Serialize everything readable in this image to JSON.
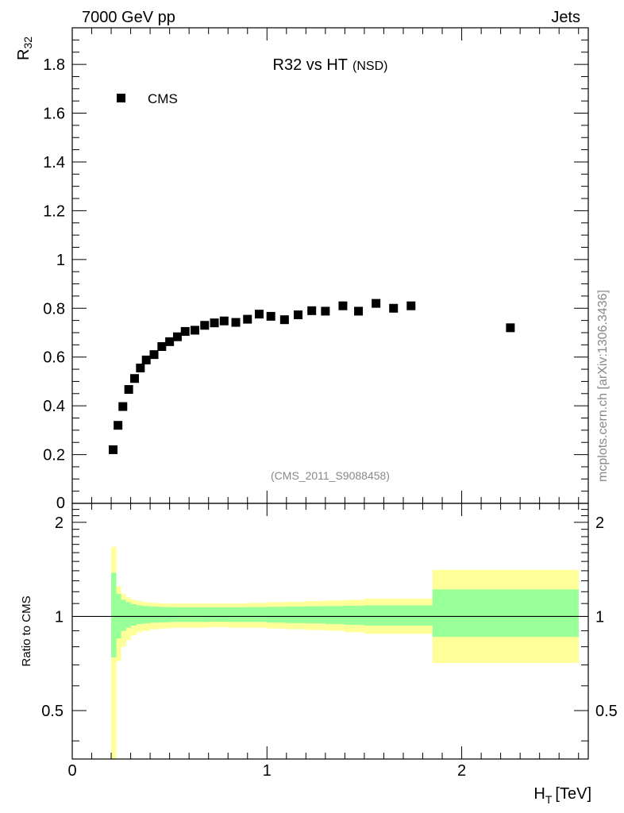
{
  "header": {
    "left": "7000 GeV pp",
    "right": "Jets"
  },
  "side_label": "mcplots.cern.ch [arXiv:1306.3436]",
  "watermark": "(CMS_2011_S9088458)",
  "colors": {
    "data": "#000000",
    "band_inner": "#99ff99",
    "band_outer": "#ffff99",
    "axis": "#000000"
  },
  "chart_data": [
    {
      "type": "scatter",
      "title": "R32 vs HT",
      "title_suffix": "(NSD)",
      "ylabel_main": "R",
      "ylabel_sub": "32",
      "xlim": [
        0,
        2.65
      ],
      "ylim": [
        0,
        1.95
      ],
      "yticks": [
        0,
        0.2,
        0.4,
        0.6,
        0.8,
        1,
        1.2,
        1.4,
        1.6,
        1.8
      ],
      "ytick_labels": [
        "0",
        "0.2",
        "0.4",
        "0.6",
        "0.8",
        "1",
        "1.2",
        "1.4",
        "1.6",
        "1.8"
      ],
      "legend": [
        {
          "name": "CMS",
          "marker": "square"
        }
      ],
      "series": [
        {
          "name": "CMS",
          "x": [
            0.21,
            0.235,
            0.26,
            0.29,
            0.32,
            0.35,
            0.38,
            0.42,
            0.46,
            0.5,
            0.54,
            0.58,
            0.63,
            0.68,
            0.73,
            0.78,
            0.84,
            0.9,
            0.96,
            1.02,
            1.09,
            1.16,
            1.23,
            1.3,
            1.39,
            1.47,
            1.56,
            1.65,
            1.74,
            2.25
          ],
          "y": [
            0.22,
            0.32,
            0.397,
            0.467,
            0.512,
            0.555,
            0.588,
            0.61,
            0.643,
            0.663,
            0.683,
            0.705,
            0.71,
            0.73,
            0.74,
            0.748,
            0.742,
            0.755,
            0.776,
            0.767,
            0.753,
            0.773,
            0.79,
            0.788,
            0.81,
            0.788,
            0.82,
            0.8,
            0.81,
            0.72
          ]
        }
      ]
    },
    {
      "type": "area",
      "ylabel": "Ratio to CMS",
      "xlabel_main": "H",
      "xlabel_sub": "T",
      "xlabel_unit": "[TeV]",
      "xlim": [
        0,
        2.65
      ],
      "ylim": [
        0.35,
        2.3
      ],
      "xticks": [
        0,
        1,
        2
      ],
      "xtick_labels": [
        "0",
        "1",
        "2"
      ],
      "yticks": [
        0.5,
        1,
        2
      ],
      "ytick_labels": [
        "0.5",
        "1",
        "2"
      ],
      "reference_line": 1,
      "series": [
        {
          "name": "outer uncertainty band",
          "edges": [
            0.2,
            0.225,
            0.25,
            0.275,
            0.3,
            0.33,
            0.36,
            0.4,
            0.45,
            0.5,
            0.55,
            0.6,
            0.7,
            0.8,
            0.9,
            1.0,
            1.1,
            1.2,
            1.3,
            1.4,
            1.5,
            1.6,
            1.7,
            1.85,
            2.6
          ],
          "low": [
            0.3,
            0.72,
            0.8,
            0.84,
            0.87,
            0.89,
            0.9,
            0.91,
            0.915,
            0.92,
            0.92,
            0.92,
            0.925,
            0.92,
            0.92,
            0.915,
            0.91,
            0.905,
            0.9,
            0.89,
            0.88,
            0.88,
            0.88,
            0.71
          ],
          "high": [
            1.67,
            1.25,
            1.18,
            1.15,
            1.13,
            1.12,
            1.11,
            1.105,
            1.1,
            1.1,
            1.1,
            1.1,
            1.1,
            1.1,
            1.105,
            1.11,
            1.115,
            1.12,
            1.125,
            1.13,
            1.14,
            1.14,
            1.14,
            1.41
          ]
        },
        {
          "name": "inner uncertainty band",
          "edges": [
            0.2,
            0.225,
            0.25,
            0.275,
            0.3,
            0.33,
            0.36,
            0.4,
            0.45,
            0.5,
            0.55,
            0.6,
            0.7,
            0.8,
            0.9,
            1.0,
            1.1,
            1.2,
            1.3,
            1.4,
            1.5,
            1.6,
            1.7,
            1.85,
            2.6
          ],
          "low": [
            0.74,
            0.85,
            0.9,
            0.92,
            0.935,
            0.945,
            0.95,
            0.955,
            0.958,
            0.96,
            0.96,
            0.96,
            0.962,
            0.96,
            0.96,
            0.955,
            0.952,
            0.95,
            0.945,
            0.94,
            0.935,
            0.935,
            0.935,
            0.86
          ],
          "high": [
            1.38,
            1.18,
            1.13,
            1.11,
            1.095,
            1.085,
            1.08,
            1.075,
            1.072,
            1.07,
            1.07,
            1.07,
            1.07,
            1.07,
            1.072,
            1.074,
            1.076,
            1.078,
            1.08,
            1.082,
            1.085,
            1.085,
            1.085,
            1.22
          ]
        }
      ]
    }
  ]
}
